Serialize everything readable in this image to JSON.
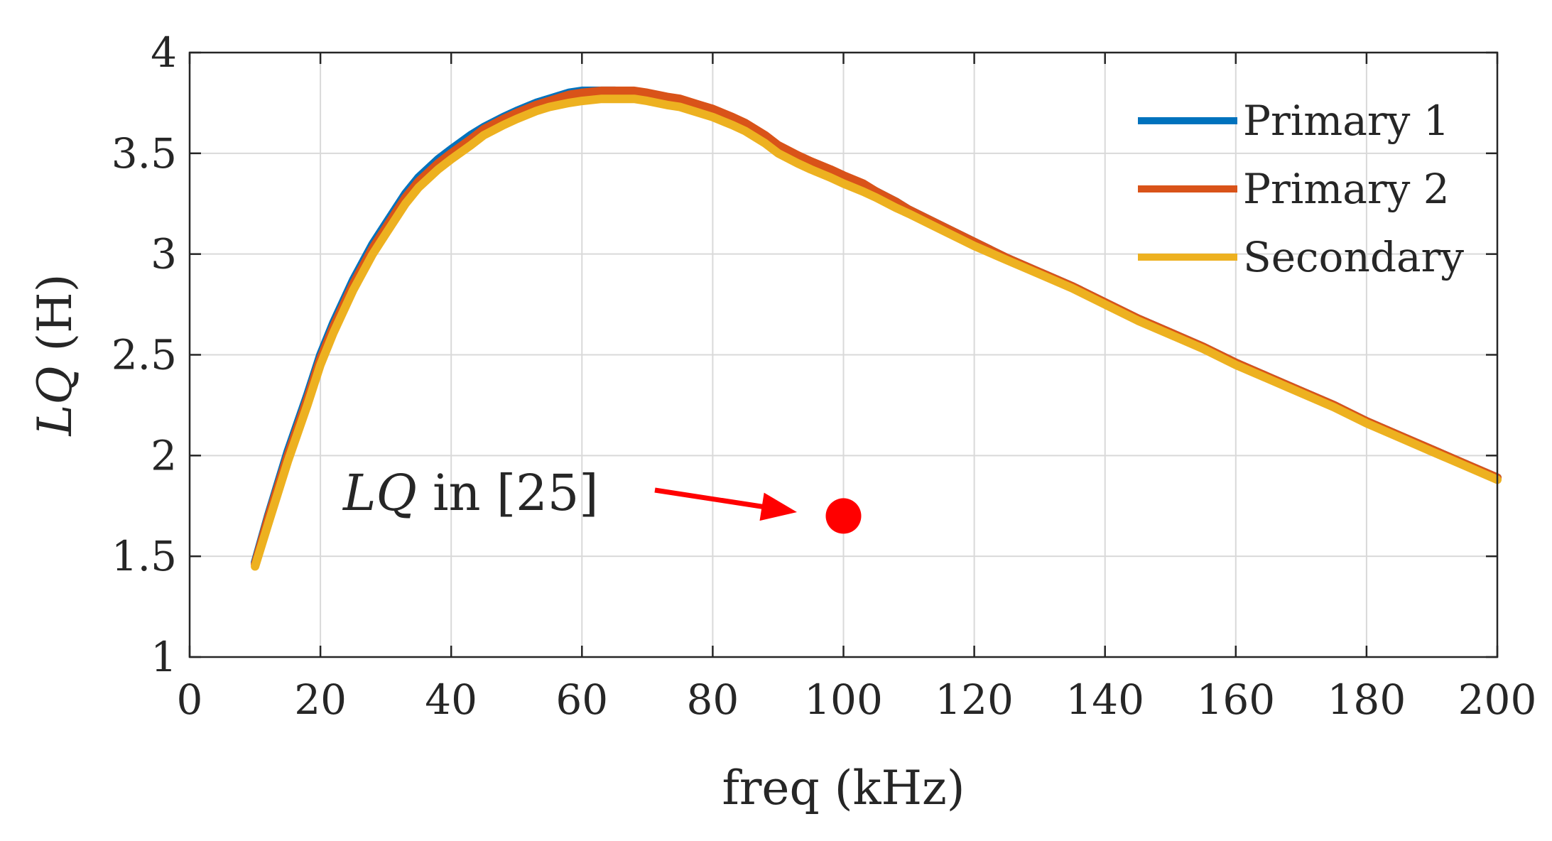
{
  "chart_data": {
    "type": "line",
    "xlabel": "freq (kHz)",
    "ylabel_italic": "LQ",
    "ylabel_unit": " (H)",
    "xlim": [
      0,
      200
    ],
    "ylim": [
      1,
      4
    ],
    "xticks": [
      0,
      20,
      40,
      60,
      80,
      100,
      120,
      140,
      160,
      180,
      200
    ],
    "yticks": [
      1,
      1.5,
      2,
      2.5,
      3,
      3.5,
      4
    ],
    "xtick_labels": [
      "0",
      "20",
      "40",
      "60",
      "80",
      "100",
      "120",
      "140",
      "160",
      "180",
      "200"
    ],
    "ytick_labels": [
      "1",
      "1.5",
      "2",
      "2.5",
      "3",
      "3.5",
      "4"
    ],
    "grid": true,
    "legend_position": "top-right",
    "series": [
      {
        "name": "Primary 1",
        "color": "#0072BD",
        "x": [
          10,
          12,
          15,
          18,
          20,
          22,
          25,
          28,
          30,
          33,
          35,
          38,
          40,
          43,
          45,
          48,
          50,
          53,
          55,
          58,
          60,
          63,
          65,
          68,
          70,
          73,
          75,
          78,
          80,
          83,
          85,
          88,
          90,
          93,
          95,
          98,
          100,
          103,
          105,
          108,
          110,
          115,
          120,
          125,
          130,
          135,
          140,
          145,
          150,
          155,
          160,
          165,
          170,
          175,
          180,
          185,
          190,
          195,
          200
        ],
        "values": [
          1.47,
          1.7,
          2.02,
          2.3,
          2.5,
          2.66,
          2.87,
          3.05,
          3.15,
          3.3,
          3.38,
          3.47,
          3.52,
          3.59,
          3.63,
          3.68,
          3.71,
          3.75,
          3.77,
          3.8,
          3.81,
          3.81,
          3.81,
          3.8,
          3.79,
          3.77,
          3.76,
          3.73,
          3.71,
          3.67,
          3.64,
          3.58,
          3.53,
          3.48,
          3.45,
          3.41,
          3.38,
          3.34,
          3.31,
          3.26,
          3.22,
          3.14,
          3.06,
          2.98,
          2.91,
          2.84,
          2.76,
          2.68,
          2.61,
          2.54,
          2.46,
          2.39,
          2.32,
          2.25,
          2.17,
          2.1,
          2.03,
          1.96,
          1.89
        ]
      },
      {
        "name": "Primary 2",
        "color": "#D95319",
        "x": [
          10,
          12,
          15,
          18,
          20,
          22,
          25,
          28,
          30,
          33,
          35,
          38,
          40,
          43,
          45,
          48,
          50,
          53,
          55,
          58,
          60,
          63,
          65,
          68,
          70,
          73,
          75,
          78,
          80,
          83,
          85,
          88,
          90,
          93,
          95,
          98,
          100,
          103,
          105,
          108,
          110,
          115,
          120,
          125,
          130,
          135,
          140,
          145,
          150,
          155,
          160,
          165,
          170,
          175,
          180,
          185,
          190,
          195,
          200
        ],
        "values": [
          1.46,
          1.69,
          2.0,
          2.28,
          2.48,
          2.64,
          2.85,
          3.03,
          3.13,
          3.28,
          3.36,
          3.45,
          3.5,
          3.57,
          3.62,
          3.67,
          3.7,
          3.74,
          3.76,
          3.79,
          3.8,
          3.81,
          3.81,
          3.81,
          3.8,
          3.78,
          3.77,
          3.74,
          3.72,
          3.68,
          3.65,
          3.59,
          3.54,
          3.49,
          3.46,
          3.42,
          3.39,
          3.35,
          3.31,
          3.26,
          3.22,
          3.14,
          3.06,
          2.98,
          2.91,
          2.84,
          2.76,
          2.68,
          2.61,
          2.54,
          2.46,
          2.39,
          2.32,
          2.25,
          2.17,
          2.1,
          2.03,
          1.96,
          1.89
        ]
      },
      {
        "name": "Secondary",
        "color": "#EDB120",
        "x": [
          10,
          12,
          15,
          18,
          20,
          22,
          25,
          28,
          30,
          33,
          35,
          38,
          40,
          43,
          45,
          48,
          50,
          53,
          55,
          58,
          60,
          63,
          65,
          68,
          70,
          73,
          75,
          78,
          80,
          83,
          85,
          88,
          90,
          93,
          95,
          98,
          100,
          103,
          105,
          108,
          110,
          115,
          120,
          125,
          130,
          135,
          140,
          145,
          150,
          155,
          160,
          165,
          170,
          175,
          180,
          185,
          190,
          195,
          200
        ],
        "values": [
          1.45,
          1.66,
          1.97,
          2.25,
          2.45,
          2.61,
          2.82,
          3.0,
          3.1,
          3.25,
          3.33,
          3.42,
          3.47,
          3.54,
          3.59,
          3.64,
          3.67,
          3.71,
          3.73,
          3.75,
          3.76,
          3.77,
          3.77,
          3.77,
          3.76,
          3.74,
          3.73,
          3.7,
          3.68,
          3.64,
          3.61,
          3.55,
          3.5,
          3.45,
          3.42,
          3.38,
          3.35,
          3.31,
          3.28,
          3.23,
          3.2,
          3.12,
          3.04,
          2.97,
          2.9,
          2.83,
          2.75,
          2.67,
          2.6,
          2.53,
          2.45,
          2.38,
          2.31,
          2.24,
          2.16,
          2.09,
          2.02,
          1.95,
          1.88
        ]
      }
    ],
    "reference_point": {
      "x": 100,
      "y": 1.7,
      "color": "#FF0000",
      "label_italic": "LQ",
      "label_rest": " in [25]"
    }
  }
}
